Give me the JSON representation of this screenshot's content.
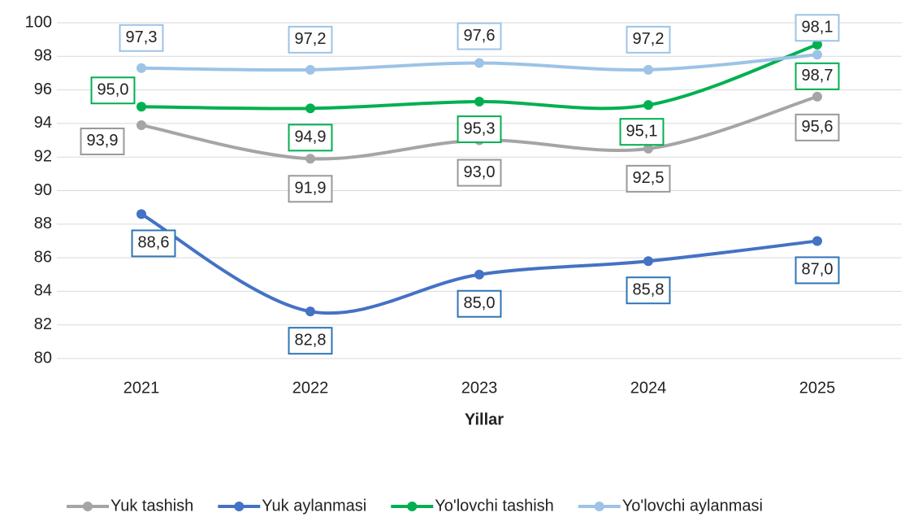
{
  "chart_data": {
    "type": "line",
    "x_label": "Yillar",
    "categories": [
      "2021",
      "2022",
      "2023",
      "2024",
      "2025"
    ],
    "series": [
      {
        "name": "Yuk tashish",
        "color": "#a5a5a5",
        "values": [
          93.9,
          91.9,
          93.0,
          92.5,
          95.6
        ],
        "value_labels": [
          "93,9",
          "91,9",
          "93,0",
          "92,5",
          "95,6"
        ]
      },
      {
        "name": "Yuk aylanmasi",
        "color": "#4472c4",
        "values": [
          88.6,
          82.8,
          85.0,
          85.8,
          87.0
        ],
        "value_labels": [
          "88,6",
          "82,8",
          "85,0",
          "85,8",
          "87,0"
        ]
      },
      {
        "name": "Yo'lovchi tashish",
        "color": "#00b050",
        "values": [
          95.0,
          94.9,
          95.3,
          95.1,
          98.7
        ],
        "value_labels": [
          "95,0",
          "94,9",
          "95,3",
          "95,1",
          "98,7"
        ]
      },
      {
        "name": "Yo'lovchi aylanmasi",
        "color": "#9dc3e6",
        "values": [
          97.3,
          97.2,
          97.6,
          97.2,
          98.1
        ],
        "value_labels": [
          "97,3",
          "97,2",
          "97,6",
          "97,2",
          "98,1"
        ]
      }
    ],
    "ylim": [
      80,
      100
    ],
    "yticks": [
      80,
      82,
      84,
      86,
      88,
      90,
      92,
      94,
      96,
      98,
      100
    ],
    "grid": true,
    "legend": "bottom"
  }
}
